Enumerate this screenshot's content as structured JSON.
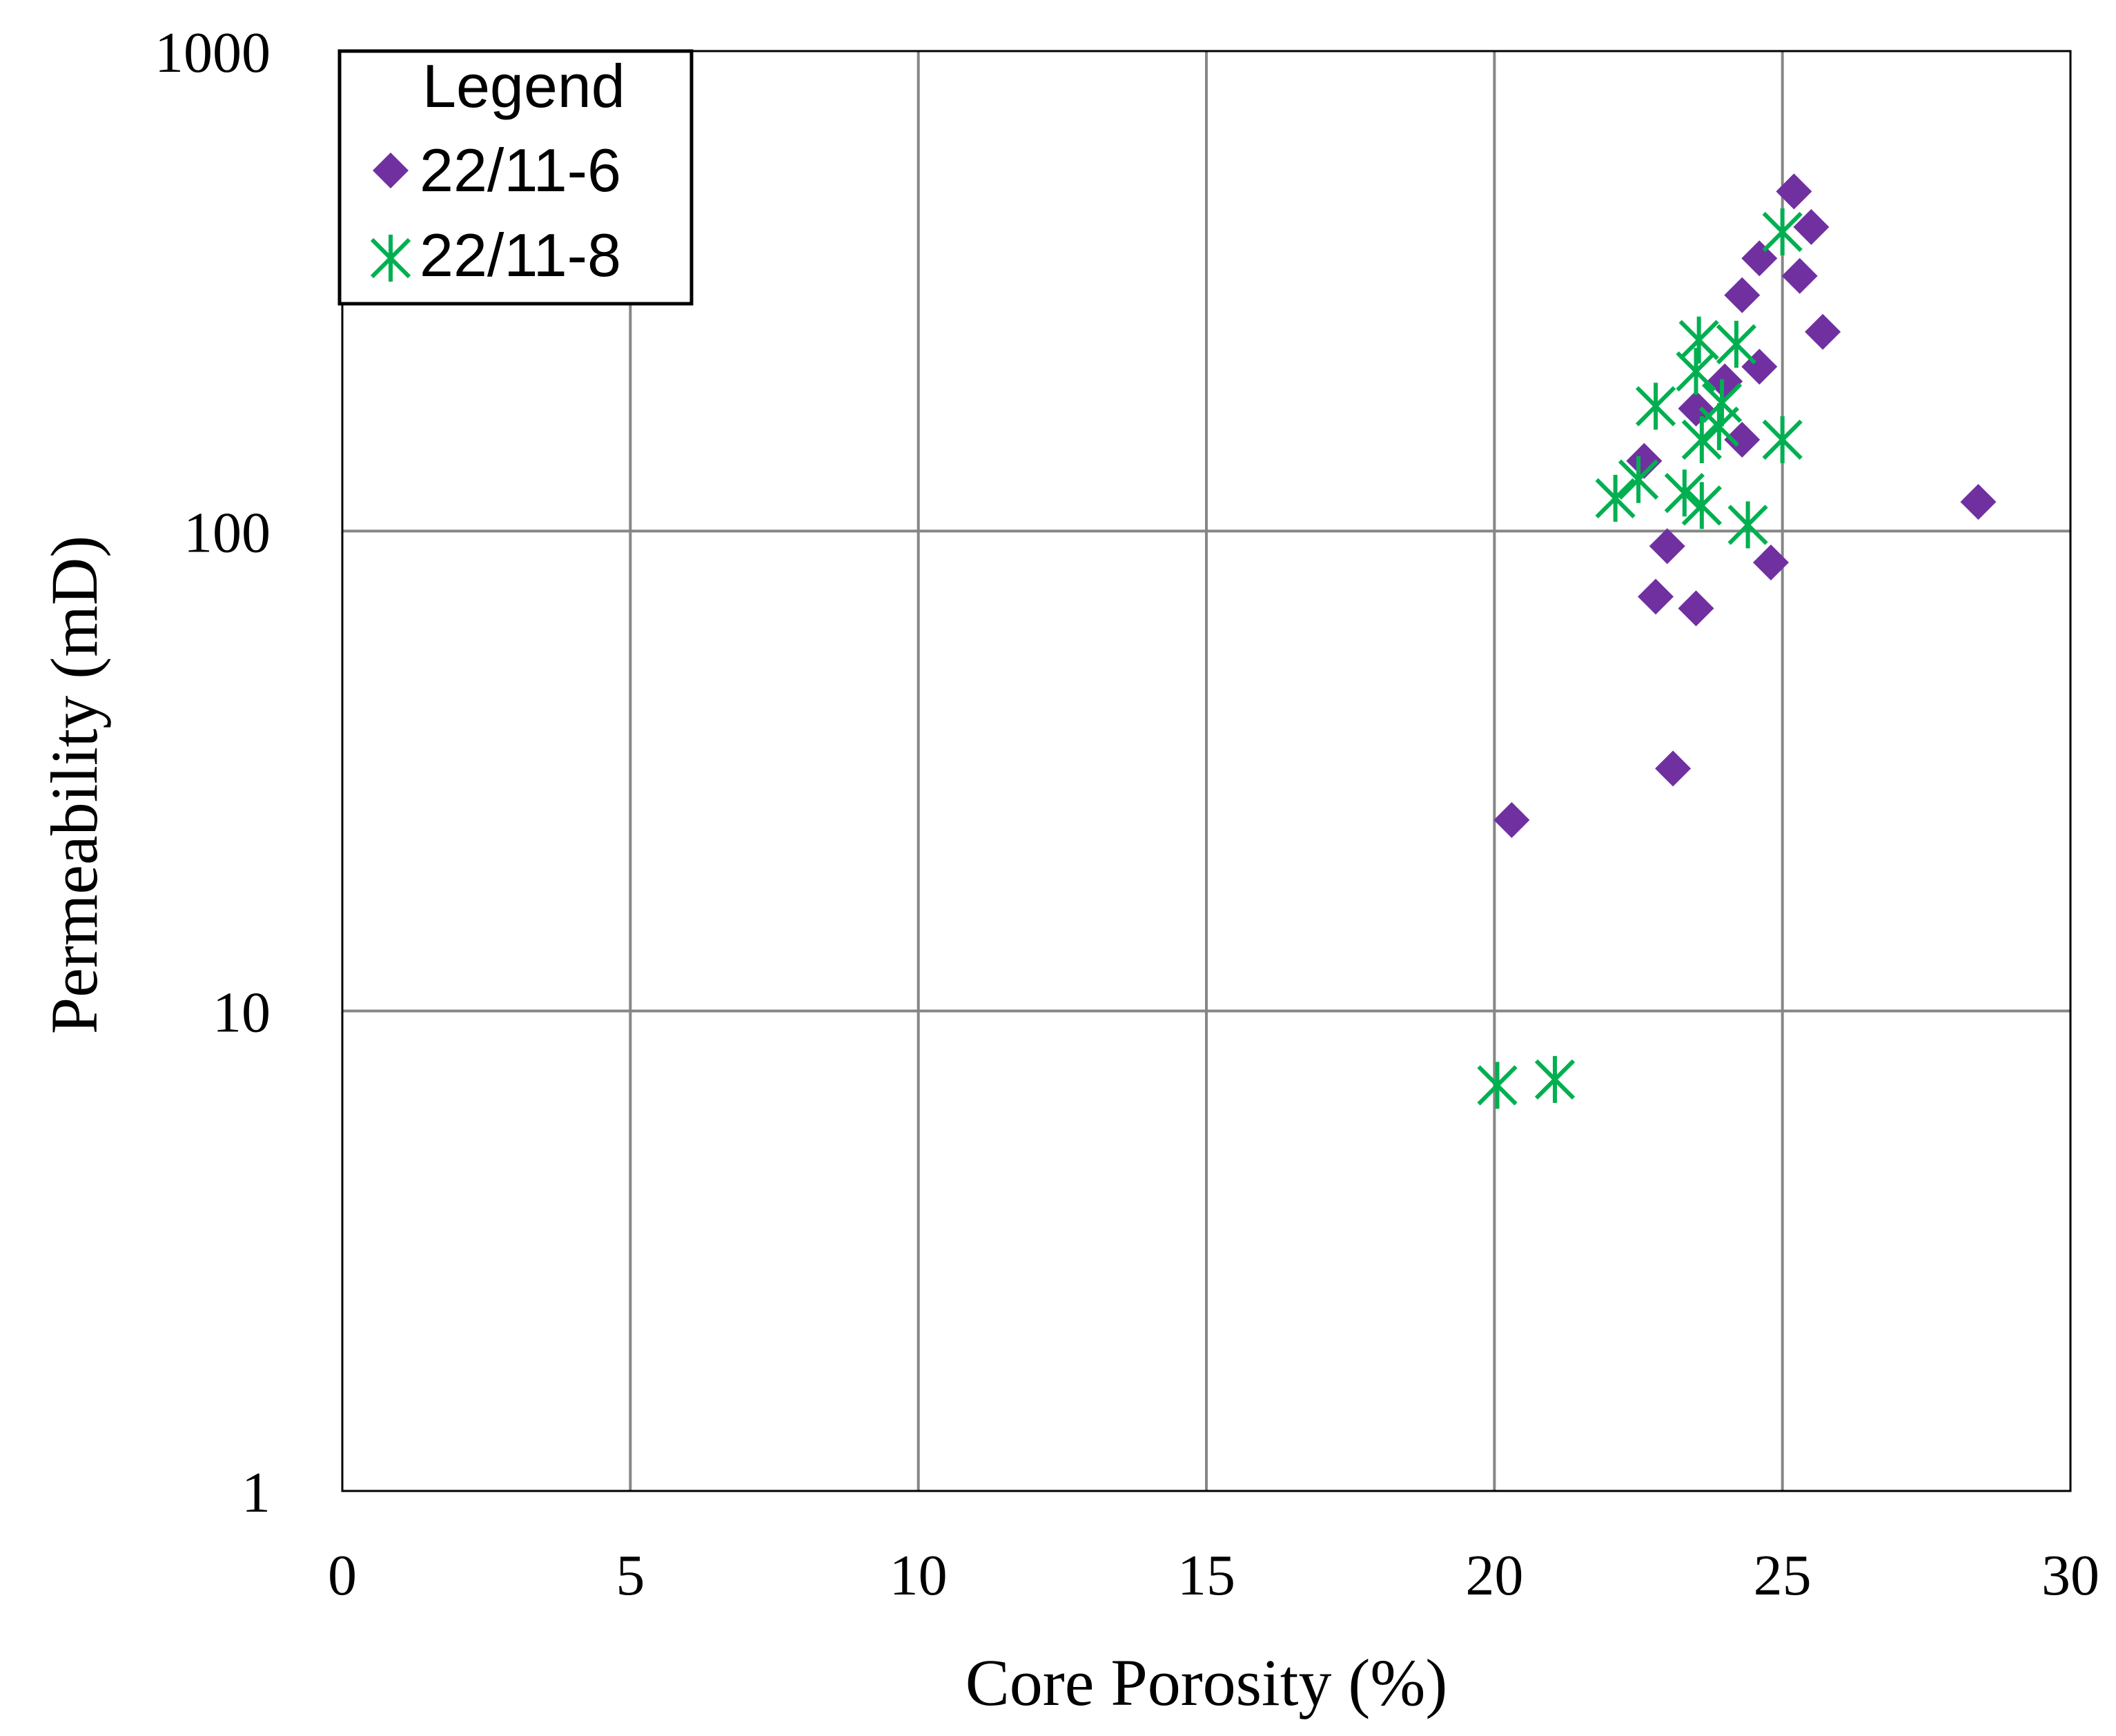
{
  "chart_data": {
    "type": "scatter",
    "title": "",
    "xlabel": "Core Porosity (%)",
    "ylabel": "Permeability  (mD)",
    "xlim": [
      0,
      30
    ],
    "ylim": [
      1,
      1000
    ],
    "yscale": "log",
    "x_ticks": [
      0,
      5,
      10,
      15,
      20,
      25,
      30
    ],
    "x_tick_labels": [
      "0",
      "5",
      "10",
      "15",
      "20",
      "25",
      "30"
    ],
    "y_ticks": [
      1,
      10,
      100,
      1000
    ],
    "y_tick_labels": [
      "1",
      "10",
      "100",
      "1000"
    ],
    "grid": true,
    "legend": {
      "title": "Legend",
      "position": "top-left",
      "entries": [
        "22/11-6",
        "22/11-8"
      ]
    },
    "series": [
      {
        "name": "22/11-6",
        "marker": "diamond",
        "color": "#7030A0",
        "points": [
          {
            "x": 20.3,
            "y": 25
          },
          {
            "x": 23.1,
            "y": 32
          },
          {
            "x": 22.8,
            "y": 73
          },
          {
            "x": 23.5,
            "y": 69
          },
          {
            "x": 23.0,
            "y": 93
          },
          {
            "x": 22.6,
            "y": 140
          },
          {
            "x": 23.5,
            "y": 180
          },
          {
            "x": 24.0,
            "y": 205
          },
          {
            "x": 24.3,
            "y": 155
          },
          {
            "x": 24.6,
            "y": 220
          },
          {
            "x": 24.8,
            "y": 86
          },
          {
            "x": 24.3,
            "y": 310
          },
          {
            "x": 24.6,
            "y": 370
          },
          {
            "x": 25.2,
            "y": 510
          },
          {
            "x": 25.3,
            "y": 340
          },
          {
            "x": 25.5,
            "y": 430
          },
          {
            "x": 25.7,
            "y": 260
          },
          {
            "x": 28.4,
            "y": 115
          }
        ]
      },
      {
        "name": "22/11-8",
        "marker": "asterisk",
        "color": "#00B050",
        "points": [
          {
            "x": 20.05,
            "y": 7.0
          },
          {
            "x": 21.05,
            "y": 7.2
          },
          {
            "x": 22.1,
            "y": 117
          },
          {
            "x": 22.5,
            "y": 128
          },
          {
            "x": 22.8,
            "y": 182
          },
          {
            "x": 23.3,
            "y": 120
          },
          {
            "x": 23.6,
            "y": 113
          },
          {
            "x": 23.5,
            "y": 215
          },
          {
            "x": 23.55,
            "y": 250
          },
          {
            "x": 23.6,
            "y": 155
          },
          {
            "x": 23.9,
            "y": 165
          },
          {
            "x": 23.95,
            "y": 185
          },
          {
            "x": 24.2,
            "y": 245
          },
          {
            "x": 24.4,
            "y": 103
          },
          {
            "x": 25.0,
            "y": 155
          },
          {
            "x": 25.0,
            "y": 420
          }
        ]
      }
    ]
  }
}
